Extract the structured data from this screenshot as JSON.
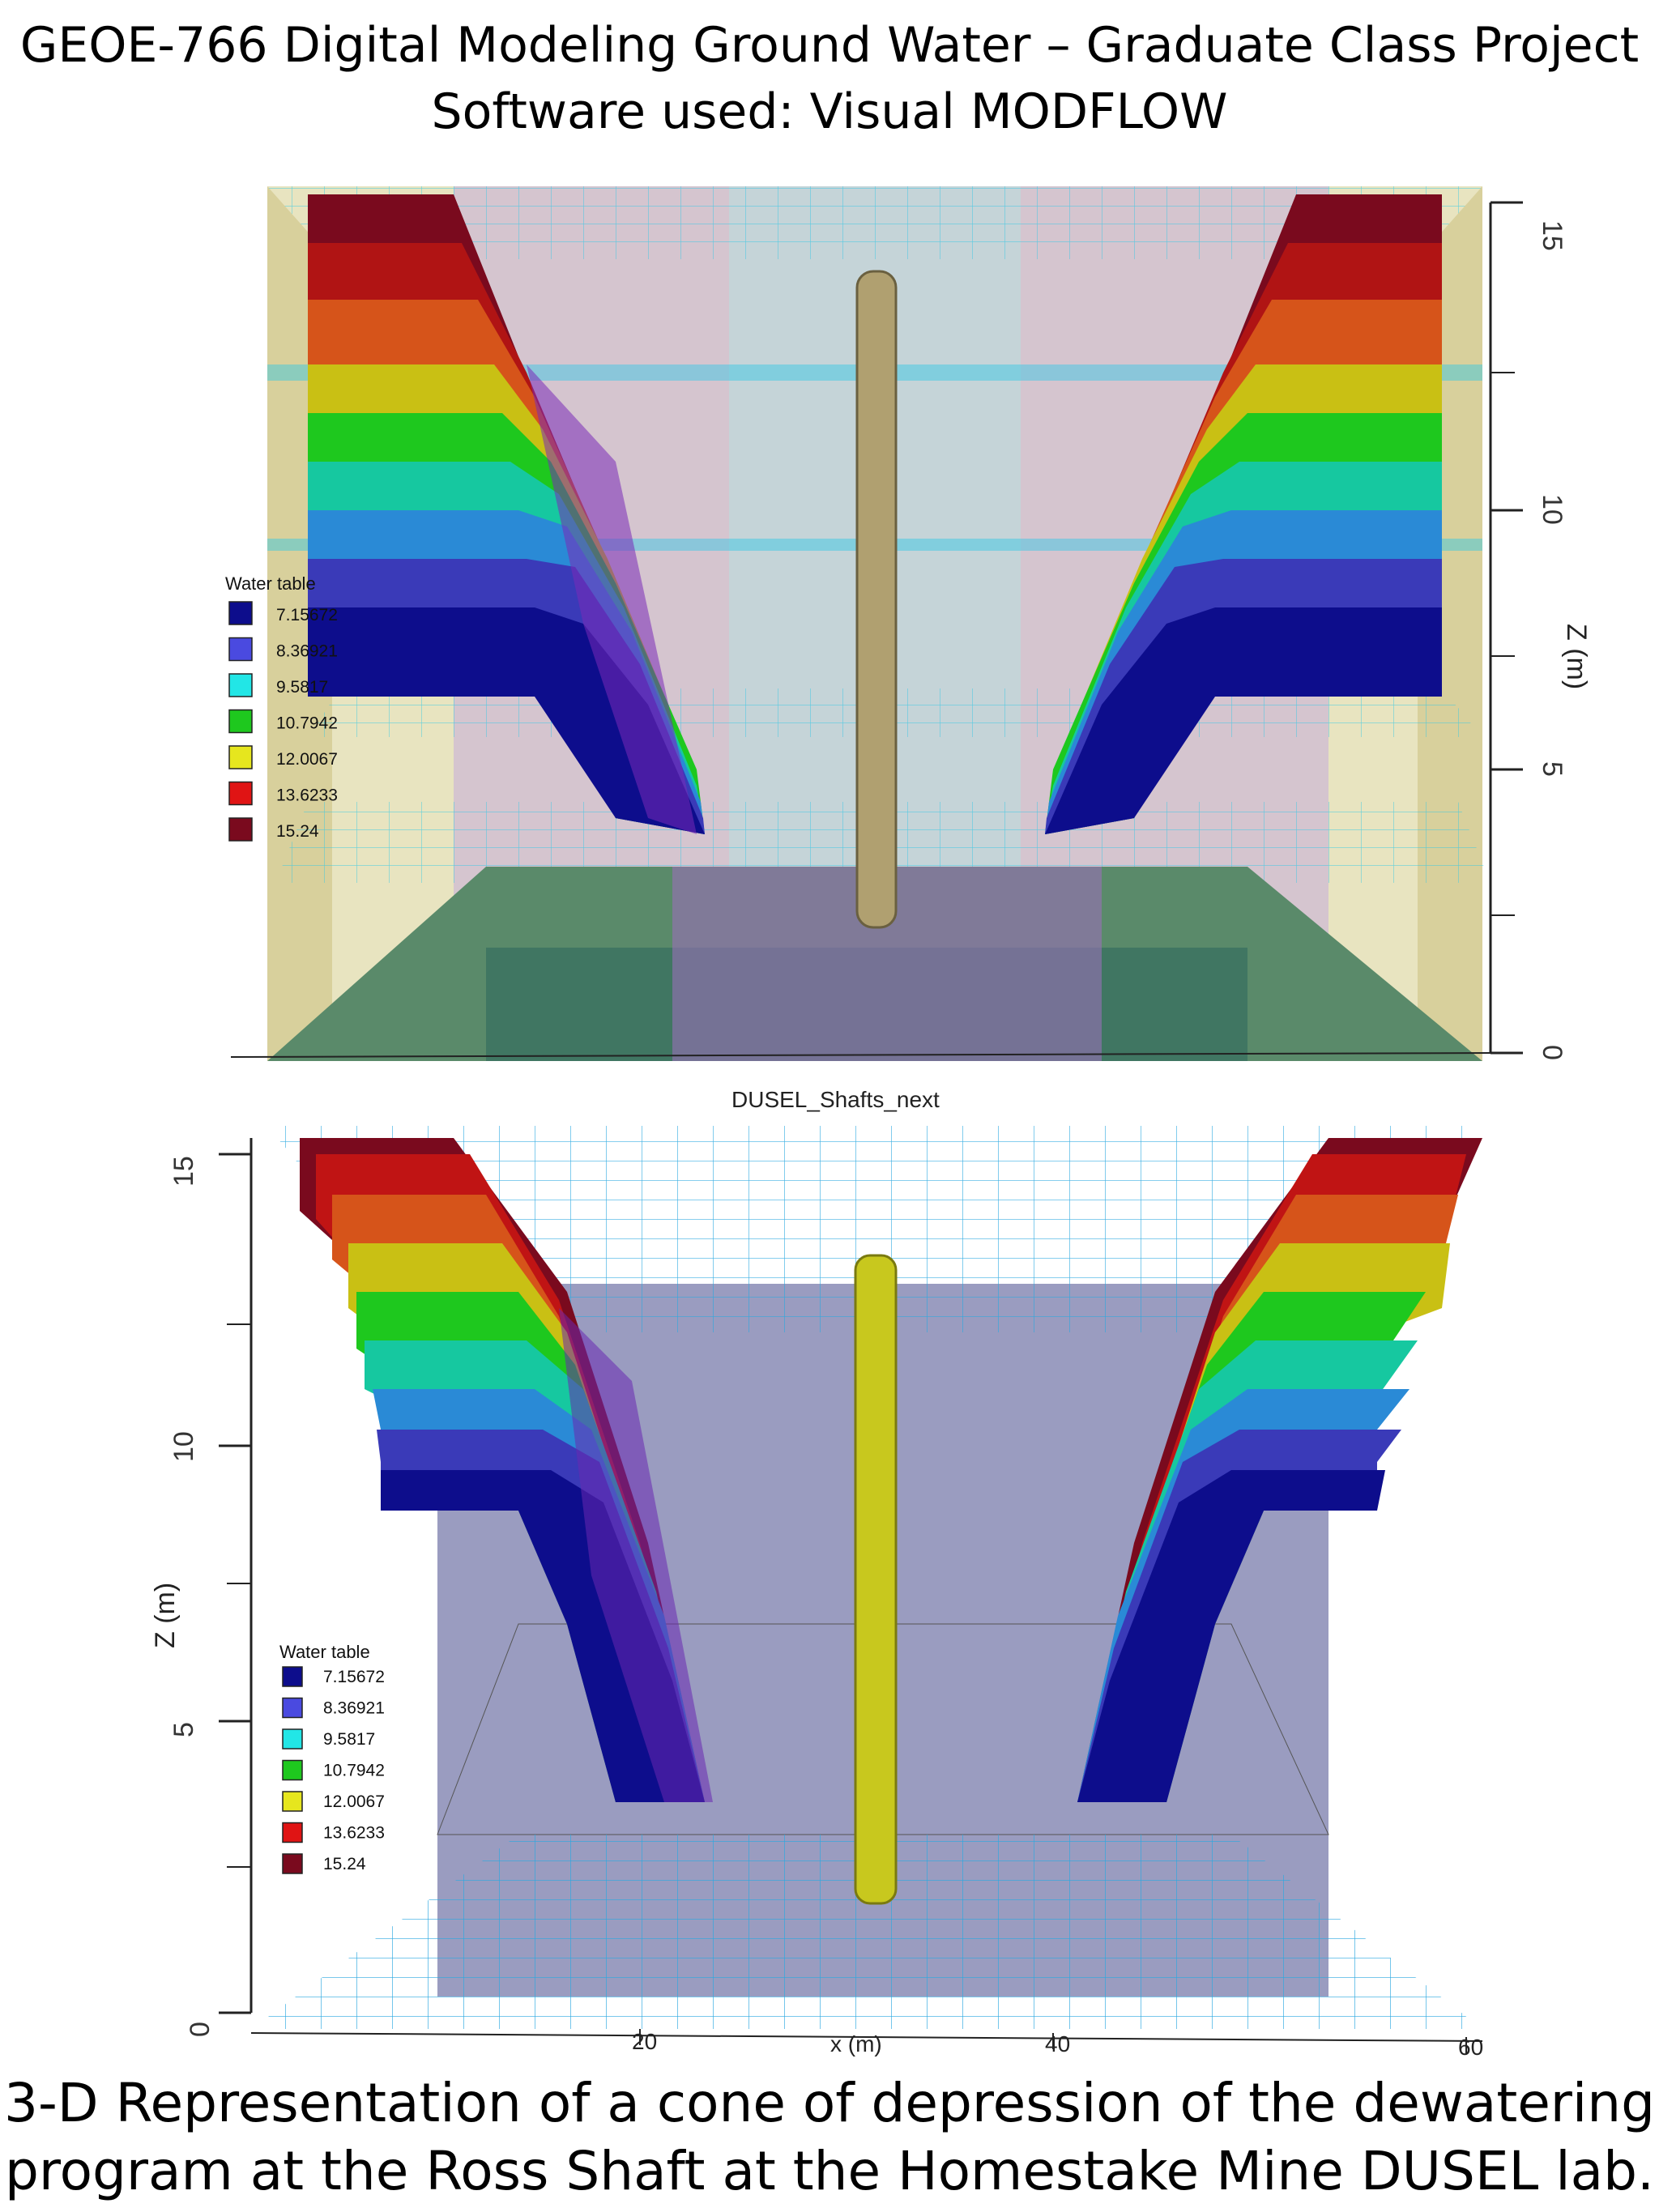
{
  "header": {
    "line1": "GEOE-766 Digital Modeling Ground Water – Graduate Class Project",
    "line2": "Software used: Visual MODFLOW"
  },
  "legend": {
    "title": "Water table",
    "entries": [
      {
        "label": "7.15672",
        "color": "#0d0d8c"
      },
      {
        "label": "8.36921",
        "color": "#4a4ae0"
      },
      {
        "label": "9.5817",
        "color": "#22e6e6"
      },
      {
        "label": "10.7942",
        "color": "#1ec81e"
      },
      {
        "label": "12.0067",
        "color": "#e6e61e"
      },
      {
        "label": "13.6233",
        "color": "#e01414"
      },
      {
        "label": "15.24",
        "color": "#7a0a1e"
      }
    ]
  },
  "top_view": {
    "z_axis_label": "Z (m)",
    "z_ticks": [
      "15",
      "10",
      "5",
      "0"
    ],
    "model_name": "DUSEL_Shafts_next"
  },
  "bottom_view": {
    "z_axis_label": "Z (m)",
    "z_ticks": [
      "15",
      "10",
      "5",
      "0"
    ],
    "x_axis_label": "x (m)",
    "x_ticks": [
      "20",
      "40",
      "60"
    ]
  },
  "footer": {
    "line1": "3-D Representation of  a cone of depression of the dewatering",
    "line2": "program at the Ross Shaft at the Homestake Mine DUSEL lab."
  },
  "colors": {
    "band_colors": [
      "#7a0a1e",
      "#b01414",
      "#d6541a",
      "#c9c014",
      "#1ec81e",
      "#16c8a0",
      "#2a8ad6",
      "#3a3ab8",
      "#0d0d8c"
    ],
    "grid": "#2ec8e6",
    "shaft": "#c8c81e"
  }
}
